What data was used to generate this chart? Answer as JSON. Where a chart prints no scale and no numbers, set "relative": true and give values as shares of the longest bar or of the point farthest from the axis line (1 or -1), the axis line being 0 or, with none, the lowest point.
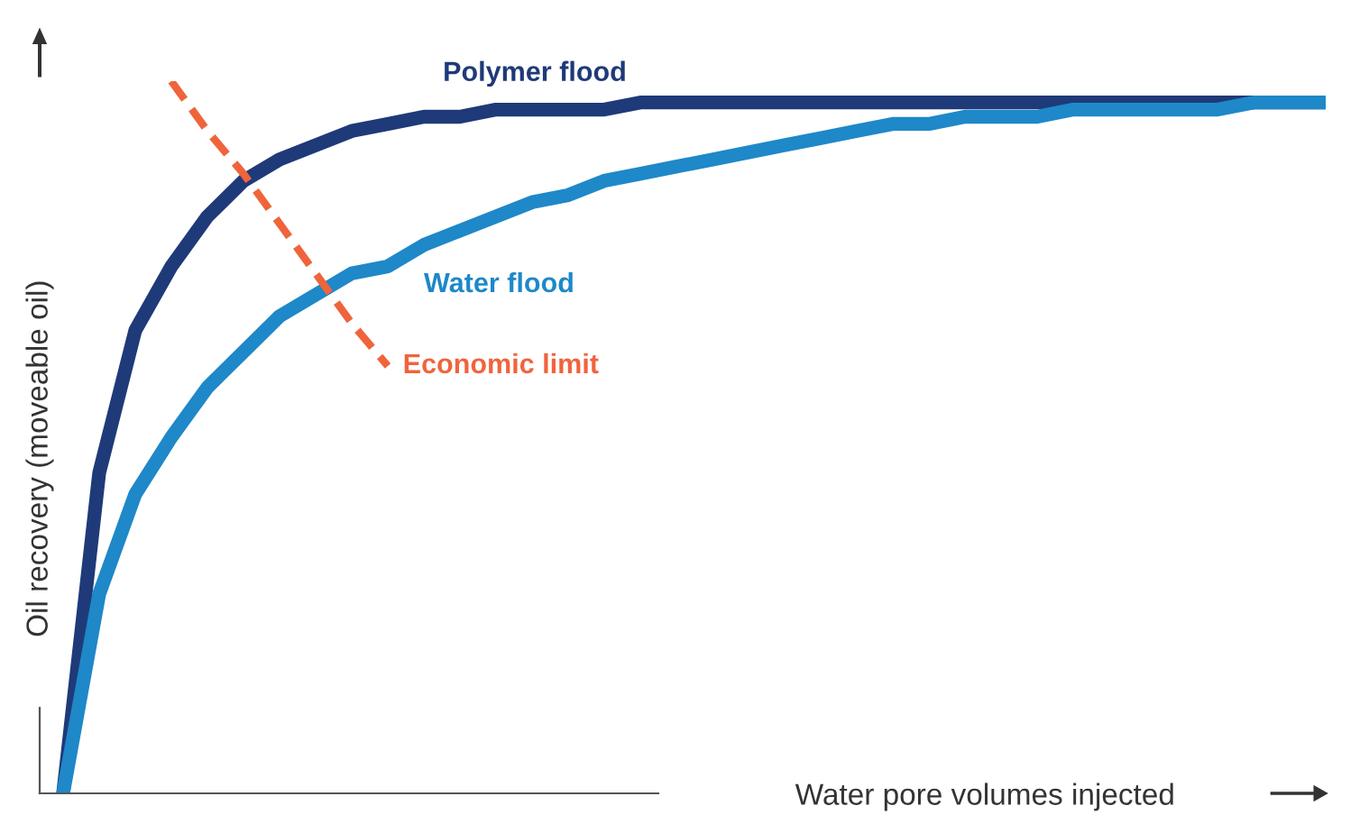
{
  "chart_data": {
    "type": "line",
    "relative": true,
    "xlabel": "Water pore volumes injected",
    "ylabel": "Oil recovery (moveable oil)",
    "legend": false,
    "marker": "none",
    "categories": [
      null,
      null,
      null,
      null,
      null,
      null,
      null,
      null,
      null,
      null,
      null,
      null,
      null,
      null,
      null,
      null,
      null,
      null,
      null,
      null,
      null,
      null,
      null,
      null,
      null,
      null,
      null,
      null,
      null,
      null,
      null,
      null,
      null,
      null,
      null,
      null
    ],
    "series": [
      {
        "name": "Polymer flood",
        "color": "#1f3a78",
        "line_style": "solid",
        "values": [
          0,
          0.45,
          0.65,
          0.74,
          0.81,
          0.86,
          0.89,
          0.91,
          0.93,
          0.94,
          0.95,
          0.95,
          0.96,
          0.96,
          0.96,
          0.96,
          0.97,
          0.97,
          0.97,
          0.97,
          0.97,
          0.97,
          0.97,
          0.97,
          0.97,
          0.97,
          0.97,
          0.97,
          0.97,
          0.97,
          0.97,
          0.97,
          0.97,
          0.97,
          0.97,
          0.97
        ]
      },
      {
        "name": "Water flood",
        "color": "#1e88c8",
        "line_style": "solid",
        "values": [
          0,
          0.28,
          0.42,
          0.5,
          0.57,
          0.62,
          0.67,
          0.7,
          0.73,
          0.74,
          0.77,
          0.79,
          0.81,
          0.83,
          0.84,
          0.86,
          0.87,
          0.88,
          0.89,
          0.9,
          0.91,
          0.92,
          0.93,
          0.94,
          0.94,
          0.95,
          0.95,
          0.95,
          0.96,
          0.96,
          0.96,
          0.96,
          0.96,
          0.97,
          0.97,
          0.97
        ]
      },
      {
        "name": "Economic limit",
        "color": "#f0643c",
        "line_style": "dashed",
        "values": [
          null,
          null,
          null,
          1,
          0.93,
          0.87,
          0.8,
          0.73,
          0.66,
          0.6,
          null,
          null,
          null,
          null,
          null,
          null,
          null,
          null,
          null,
          null,
          null,
          null,
          null,
          null,
          null,
          null,
          null,
          null,
          null,
          null,
          null,
          null,
          null,
          null,
          null,
          null
        ]
      }
    ]
  }
}
